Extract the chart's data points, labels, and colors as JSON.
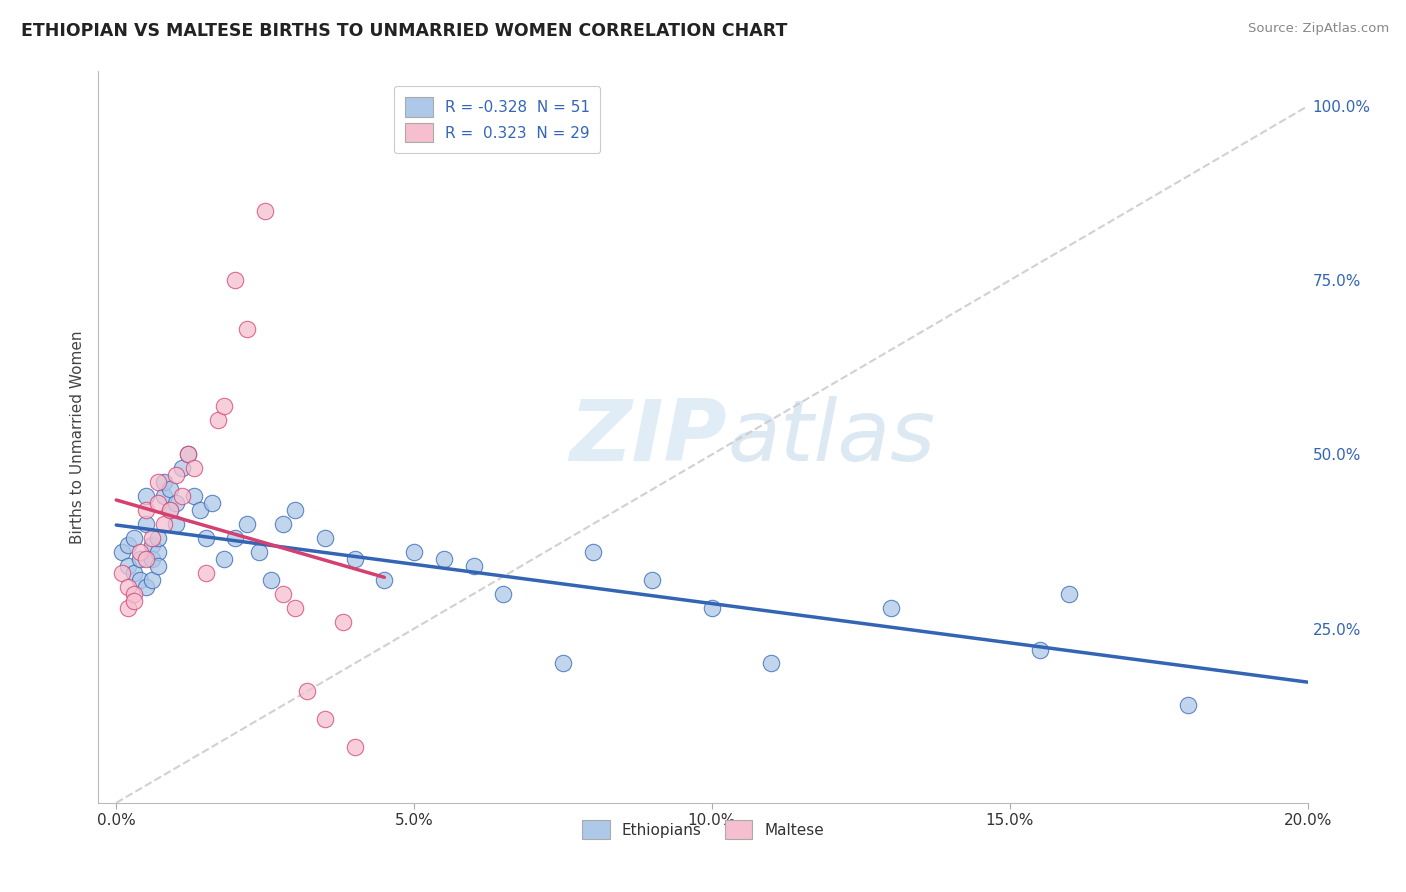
{
  "title": "ETHIOPIAN VS MALTESE BIRTHS TO UNMARRIED WOMEN CORRELATION CHART",
  "source": "Source: ZipAtlas.com",
  "ylabel": "Births to Unmarried Women",
  "ytick_labels": [
    "25.0%",
    "50.0%",
    "75.0%",
    "100.0%"
  ],
  "ytick_values": [
    25.0,
    50.0,
    75.0,
    100.0
  ],
  "xtick_positions": [
    0.0,
    5.0,
    10.0,
    15.0,
    20.0
  ],
  "xtick_labels": [
    "0.0%",
    "5.0%",
    "10.0%",
    "15.0%",
    "20.0%"
  ],
  "xlim": [
    -0.3,
    20.0
  ],
  "ylim": [
    0.0,
    105.0
  ],
  "blue_R": -0.328,
  "blue_N": 51,
  "pink_R": 0.323,
  "pink_N": 29,
  "blue_color": "#adc8e8",
  "blue_line_color": "#3464b4",
  "pink_color": "#f5bfcf",
  "pink_line_color": "#d44070",
  "diagonal_color": "#cccccc",
  "background_color": "#ffffff",
  "grid_color": "#cccccc",
  "watermark_zip": "ZIP",
  "watermark_atlas": "atlas",
  "legend_label_blue": "Ethiopians",
  "legend_label_pink": "Maltese",
  "blue_points_x": [
    0.1,
    0.2,
    0.2,
    0.3,
    0.3,
    0.4,
    0.4,
    0.5,
    0.5,
    0.5,
    0.6,
    0.6,
    0.6,
    0.7,
    0.7,
    0.7,
    0.8,
    0.8,
    0.9,
    0.9,
    1.0,
    1.0,
    1.1,
    1.2,
    1.3,
    1.4,
    1.5,
    1.6,
    1.8,
    2.0,
    2.2,
    2.4,
    2.6,
    2.8,
    3.0,
    3.5,
    4.0,
    4.5,
    5.0,
    5.5,
    6.0,
    6.5,
    7.5,
    8.0,
    9.0,
    10.0,
    11.0,
    13.0,
    15.5,
    16.0,
    18.0
  ],
  "blue_points_y": [
    36.0,
    34.0,
    37.0,
    38.0,
    33.0,
    32.0,
    35.0,
    44.0,
    31.0,
    40.0,
    37.0,
    35.0,
    32.0,
    36.0,
    38.0,
    34.0,
    44.0,
    46.0,
    42.0,
    45.0,
    43.0,
    40.0,
    48.0,
    50.0,
    44.0,
    42.0,
    38.0,
    43.0,
    35.0,
    38.0,
    40.0,
    36.0,
    32.0,
    40.0,
    42.0,
    38.0,
    35.0,
    32.0,
    36.0,
    35.0,
    34.0,
    30.0,
    20.0,
    36.0,
    32.0,
    28.0,
    20.0,
    28.0,
    22.0,
    30.0,
    14.0
  ],
  "pink_points_x": [
    0.1,
    0.2,
    0.2,
    0.3,
    0.3,
    0.4,
    0.5,
    0.5,
    0.6,
    0.7,
    0.7,
    0.8,
    0.9,
    1.0,
    1.1,
    1.2,
    1.3,
    1.5,
    1.7,
    1.8,
    2.0,
    2.2,
    2.5,
    2.8,
    3.0,
    3.2,
    3.5,
    3.8,
    4.0
  ],
  "pink_points_y": [
    33.0,
    28.0,
    31.0,
    30.0,
    29.0,
    36.0,
    35.0,
    42.0,
    38.0,
    46.0,
    43.0,
    40.0,
    42.0,
    47.0,
    44.0,
    50.0,
    48.0,
    33.0,
    55.0,
    57.0,
    75.0,
    68.0,
    85.0,
    30.0,
    28.0,
    16.0,
    12.0,
    26.0,
    8.0
  ]
}
